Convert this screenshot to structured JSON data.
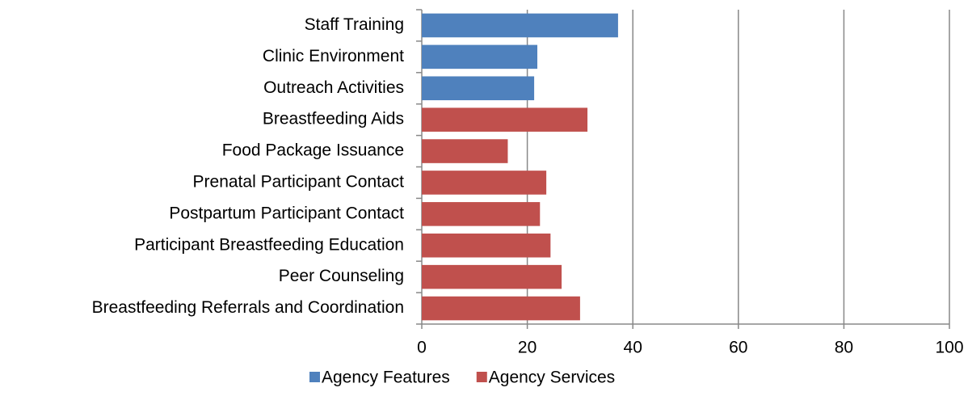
{
  "chart_data": {
    "type": "bar",
    "orientation": "horizontal",
    "categories": [
      "Staff Training",
      "Clinic Environment",
      "Outreach Activities",
      "Breastfeeding Aids",
      "Food Package Issuance",
      "Prenatal Participant Contact",
      "Postpartum Participant Contact",
      "Participant Breastfeeding Education",
      "Peer Counseling",
      "Breastfeeding Referrals and Coordination"
    ],
    "series": [
      {
        "name": "Agency Features",
        "color": "#4f81bd",
        "values": [
          37.2,
          21.9,
          21.3,
          null,
          null,
          null,
          null,
          null,
          null,
          null
        ]
      },
      {
        "name": "Agency Services",
        "color": "#c0504d",
        "values": [
          null,
          null,
          null,
          31.4,
          16.3,
          23.6,
          22.4,
          24.4,
          26.5,
          30.0
        ]
      }
    ],
    "xlim": [
      0,
      100
    ],
    "xticks": [
      0,
      20,
      40,
      60,
      80,
      100
    ],
    "grid": true,
    "legend": "bottom"
  }
}
